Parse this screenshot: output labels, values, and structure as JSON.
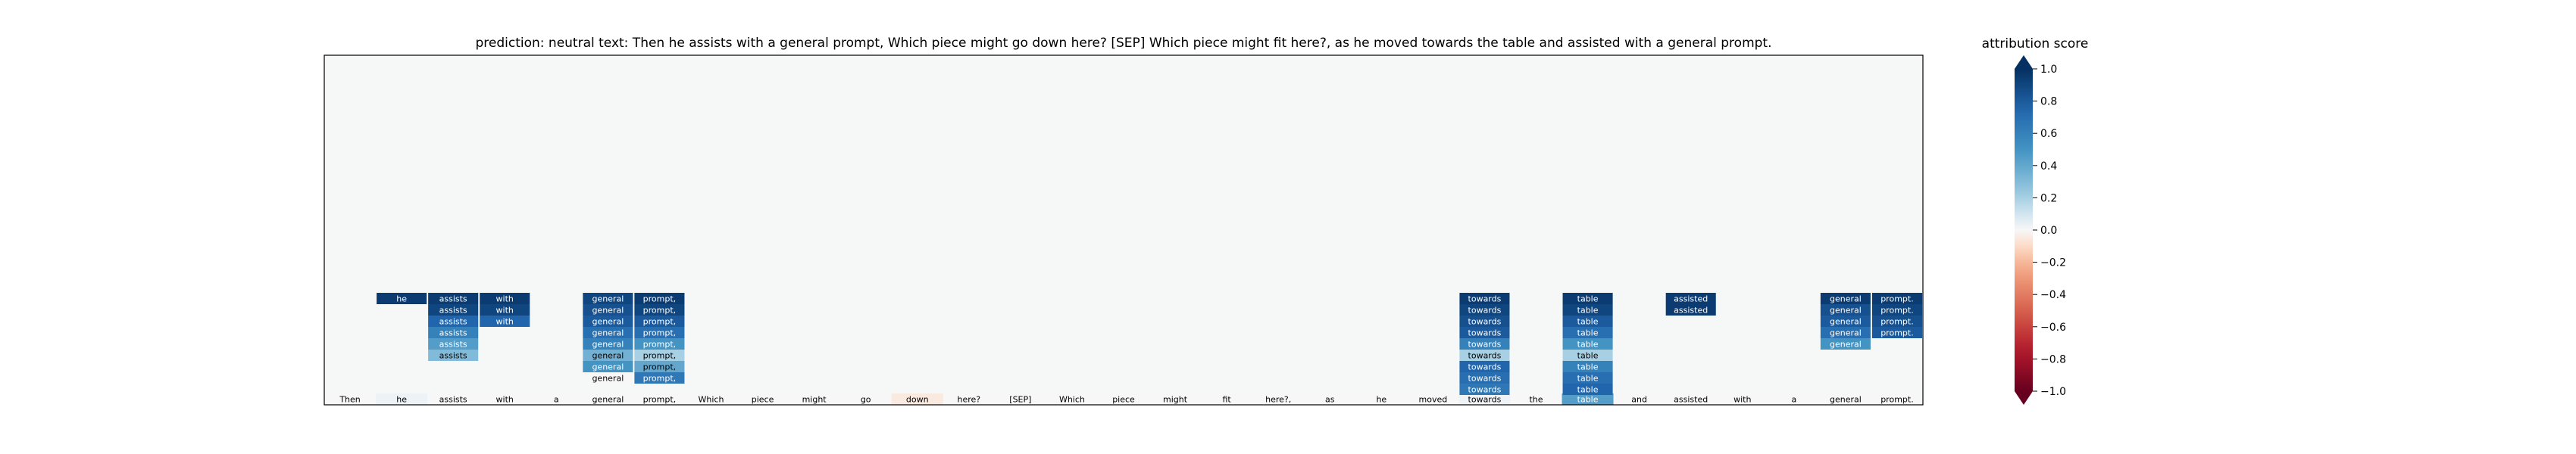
{
  "title": "prediction:  neutral     text:  Then he assists with a general prompt, Which piece might go down here? [SEP] Which piece might fit here?, as he moved towards the table and assisted with a general prompt.",
  "colorbar": {
    "label": "attribution score",
    "ticks": [
      "1.0",
      "0.8",
      "0.6",
      "0.4",
      "0.2",
      "0.0",
      "−0.2",
      "−0.4",
      "−0.6",
      "−0.8",
      "−1.0"
    ],
    "tick_values": [
      1.0,
      0.8,
      0.6,
      0.4,
      0.2,
      0.0,
      -0.2,
      -0.4,
      -0.6,
      -0.8,
      -1.0
    ],
    "range": [
      -1.0,
      1.0
    ],
    "colormap": "RdBu",
    "extend": "both"
  },
  "chart_data": {
    "type": "heatmap",
    "title": "prediction:  neutral     text:  Then he assists with a general prompt, Which piece might go down here? [SEP] Which piece might fit here?, as he moved towards the table and assisted with a general prompt.",
    "tokens": [
      "Then",
      "he",
      "assists",
      "with",
      "a",
      "general",
      "prompt,",
      "Which",
      "piece",
      "might",
      "go",
      "down",
      "here?",
      "[SEP]",
      "Which",
      "piece",
      "might",
      "fit",
      "here?,",
      "as",
      "he",
      "moved",
      "towards",
      "the",
      "table",
      "and",
      "assisted",
      "with",
      "a",
      "general",
      "prompt."
    ],
    "base_scores": [
      0.0,
      0.03,
      0.0,
      0.0,
      0.0,
      0.0,
      0.0,
      0.0,
      0.0,
      0.0,
      0.0,
      -0.05,
      0.0,
      0.0,
      0.0,
      0.0,
      0.0,
      0.0,
      0.0,
      0.0,
      0.0,
      0.0,
      0.02,
      0.0,
      0.45,
      0.0,
      0.0,
      0.0,
      0.0,
      0.0,
      0.0
    ],
    "stacks": [
      {
        "token_index": 1,
        "scores": [
          0.95
        ]
      },
      {
        "token_index": 2,
        "scores": [
          0.95,
          0.9,
          0.75,
          0.6,
          0.45,
          0.3
        ]
      },
      {
        "token_index": 3,
        "scores": [
          0.95,
          0.9,
          0.75
        ]
      },
      {
        "token_index": 5,
        "scores": [
          0.9,
          0.85,
          0.8,
          0.7,
          0.6,
          0.35,
          0.5,
          0.0
        ]
      },
      {
        "token_index": 6,
        "scores": [
          0.95,
          0.9,
          0.8,
          0.7,
          0.5,
          0.2,
          0.4,
          0.65
        ]
      },
      {
        "token_index": 22,
        "scores": [
          0.95,
          0.9,
          0.85,
          0.8,
          0.6,
          0.2,
          0.75,
          0.7,
          0.65
        ]
      },
      {
        "token_index": 24,
        "scores": [
          0.95,
          0.9,
          0.8,
          0.7,
          0.5,
          0.2,
          0.6,
          0.7,
          0.75
        ]
      },
      {
        "token_index": 26,
        "scores": [
          0.95,
          0.95
        ]
      },
      {
        "token_index": 29,
        "scores": [
          0.95,
          0.85,
          0.8,
          0.7,
          0.5
        ]
      },
      {
        "token_index": 30,
        "scores": [
          0.95,
          0.9,
          0.85,
          0.8
        ]
      }
    ],
    "colorbar_range": [
      -1.0,
      1.0
    ],
    "grid": false,
    "legend": "colorbar-right"
  }
}
